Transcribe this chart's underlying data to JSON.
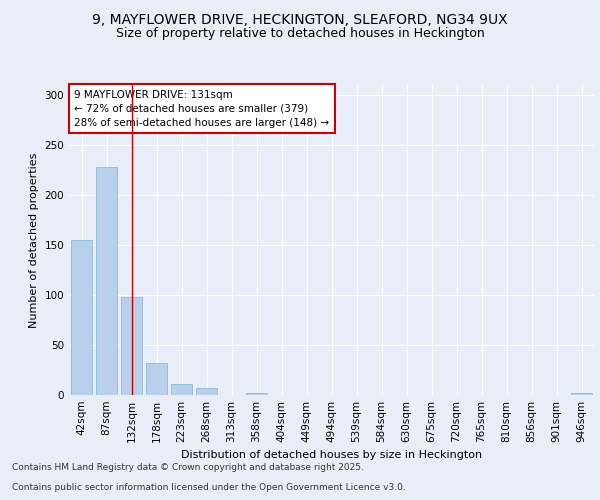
{
  "title1": "9, MAYFLOWER DRIVE, HECKINGTON, SLEAFORD, NG34 9UX",
  "title2": "Size of property relative to detached houses in Heckington",
  "xlabel": "Distribution of detached houses by size in Heckington",
  "ylabel": "Number of detached properties",
  "categories": [
    "42sqm",
    "87sqm",
    "132sqm",
    "178sqm",
    "223sqm",
    "268sqm",
    "313sqm",
    "358sqm",
    "404sqm",
    "449sqm",
    "494sqm",
    "539sqm",
    "584sqm",
    "630sqm",
    "675sqm",
    "720sqm",
    "765sqm",
    "810sqm",
    "856sqm",
    "901sqm",
    "946sqm"
  ],
  "values": [
    155,
    228,
    98,
    32,
    11,
    7,
    0,
    2,
    0,
    0,
    0,
    0,
    0,
    0,
    0,
    0,
    0,
    0,
    0,
    0,
    2
  ],
  "bar_color": "#b8d0ea",
  "bar_edge_color": "#8db8d8",
  "vline_x_idx": 2,
  "vline_color": "#cc0000",
  "annotation_text": "9 MAYFLOWER DRIVE: 131sqm\n← 72% of detached houses are smaller (379)\n28% of semi-detached houses are larger (148) →",
  "annotation_box_color": "#ffffff",
  "annotation_edge_color": "#cc0000",
  "ylim": [
    0,
    310
  ],
  "yticks": [
    0,
    50,
    100,
    150,
    200,
    250,
    300
  ],
  "footer1": "Contains HM Land Registry data © Crown copyright and database right 2025.",
  "footer2": "Contains public sector information licensed under the Open Government Licence v3.0.",
  "bg_color": "#e8eef8",
  "plot_bg_color": "#e8eef8",
  "title1_fontsize": 10,
  "title2_fontsize": 9,
  "axis_label_fontsize": 8,
  "tick_fontsize": 7.5,
  "annotation_fontsize": 7.5,
  "footer_fontsize": 6.5
}
